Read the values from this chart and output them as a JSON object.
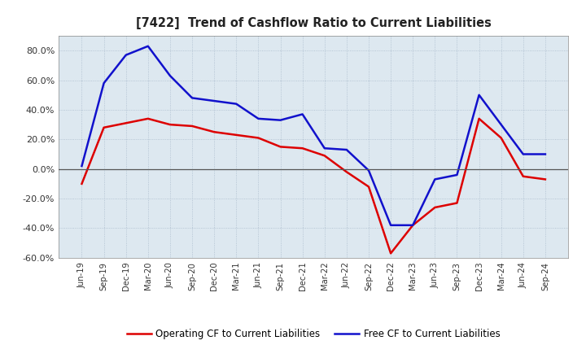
{
  "title": "[7422]  Trend of Cashflow Ratio to Current Liabilities",
  "x_labels": [
    "Jun-19",
    "Sep-19",
    "Dec-19",
    "Mar-20",
    "Jun-20",
    "Sep-20",
    "Dec-20",
    "Mar-21",
    "Jun-21",
    "Sep-21",
    "Dec-21",
    "Mar-22",
    "Jun-22",
    "Sep-22",
    "Dec-22",
    "Mar-23",
    "Jun-23",
    "Sep-23",
    "Dec-23",
    "Mar-24",
    "Jun-24",
    "Sep-24"
  ],
  "operating_cf": [
    -0.1,
    0.28,
    0.31,
    0.34,
    0.3,
    0.29,
    0.25,
    0.23,
    0.21,
    0.15,
    0.14,
    0.09,
    -0.02,
    -0.12,
    -0.57,
    -0.38,
    -0.26,
    -0.23,
    0.34,
    0.21,
    -0.05,
    -0.07
  ],
  "free_cf": [
    0.02,
    0.58,
    0.77,
    0.83,
    0.63,
    0.48,
    0.46,
    0.44,
    0.34,
    0.33,
    0.37,
    0.14,
    0.13,
    -0.01,
    -0.38,
    -0.38,
    -0.07,
    -0.04,
    0.5,
    0.3,
    0.1,
    0.1
  ],
  "operating_color": "#dd0000",
  "free_color": "#1111cc",
  "background_color": "#ffffff",
  "plot_bg_color": "#dde8f0",
  "grid_color": "#aabbcc",
  "ylim": [
    -0.6,
    0.9
  ],
  "yticks": [
    -0.6,
    -0.4,
    -0.2,
    0.0,
    0.2,
    0.4,
    0.6,
    0.8
  ],
  "legend_op_label": "Operating CF to Current Liabilities",
  "legend_free_label": "Free CF to Current Liabilities"
}
